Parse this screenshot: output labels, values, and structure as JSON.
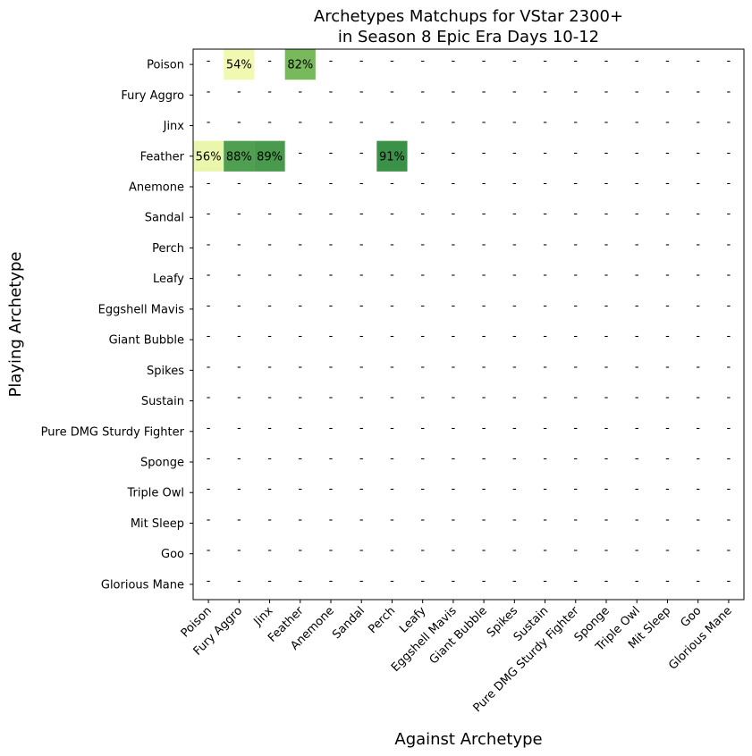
{
  "chart_data": {
    "type": "heatmap",
    "title": "Archetypes Matchups for VStar 2300+",
    "subtitle": "in Season 8 Epic Era Days 10-12",
    "xlabel": "Against Archetype",
    "ylabel": "Playing Archetype",
    "rows": [
      "Poison",
      "Fury Aggro",
      "Jinx",
      "Feather",
      "Anemone",
      "Sandal",
      "Perch",
      "Leafy",
      "Eggshell Mavis",
      "Giant Bubble",
      "Spikes",
      "Sustain",
      "Pure DMG Sturdy Fighter",
      "Sponge",
      "Triple Owl",
      "Mit Sleep",
      "Goo",
      "Glorious Mane"
    ],
    "columns": [
      "Poison",
      "Fury Aggro",
      "Jinx",
      "Feather",
      "Anemone",
      "Sandal",
      "Perch",
      "Leafy",
      "Eggshell Mavis",
      "Giant Bubble",
      "Spikes",
      "Sustain",
      "Pure DMG Sturdy Fighter",
      "Sponge",
      "Triple Owl",
      "Mit Sleep",
      "Goo",
      "Glorious Mane"
    ],
    "empty_marker": "-",
    "values": [
      {
        "row": "Poison",
        "column": "Fury Aggro",
        "value": 54,
        "label": "54%"
      },
      {
        "row": "Poison",
        "column": "Feather",
        "value": 82,
        "label": "82%"
      },
      {
        "row": "Feather",
        "column": "Poison",
        "value": 56,
        "label": "56%"
      },
      {
        "row": "Feather",
        "column": "Fury Aggro",
        "value": 88,
        "label": "88%"
      },
      {
        "row": "Feather",
        "column": "Jinx",
        "value": 89,
        "label": "89%"
      },
      {
        "row": "Feather",
        "column": "Perch",
        "value": 91,
        "label": "91%"
      }
    ],
    "colormap": "RdYlGn",
    "grid": false
  }
}
